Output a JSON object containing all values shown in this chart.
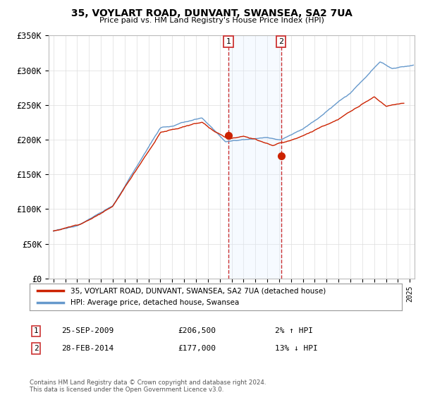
{
  "title": "35, VOYLART ROAD, DUNVANT, SWANSEA, SA2 7UA",
  "subtitle": "Price paid vs. HM Land Registry's House Price Index (HPI)",
  "ylim": [
    0,
    350000
  ],
  "yticks": [
    0,
    50000,
    100000,
    150000,
    200000,
    250000,
    300000,
    350000
  ],
  "ytick_labels": [
    "£0",
    "£50K",
    "£100K",
    "£150K",
    "£200K",
    "£250K",
    "£300K",
    "£350K"
  ],
  "xlim_start": 1994.6,
  "xlim_end": 2025.4,
  "hpi_color": "#6699cc",
  "price_color": "#cc2200",
  "transaction1_x": 2009.73,
  "transaction1_y": 206500,
  "transaction2_x": 2014.16,
  "transaction2_y": 177000,
  "vline_color": "#cc3333",
  "span_color": "#ddeeff",
  "legend_label1": "35, VOYLART ROAD, DUNVANT, SWANSEA, SA2 7UA (detached house)",
  "legend_label2": "HPI: Average price, detached house, Swansea",
  "table_row1_num": "1",
  "table_row1_date": "25-SEP-2009",
  "table_row1_price": "£206,500",
  "table_row1_hpi": "2% ↑ HPI",
  "table_row2_num": "2",
  "table_row2_date": "28-FEB-2014",
  "table_row2_price": "£177,000",
  "table_row2_hpi": "13% ↓ HPI",
  "copyright": "Contains HM Land Registry data © Crown copyright and database right 2024.\nThis data is licensed under the Open Government Licence v3.0.",
  "bg_color": "#ffffff",
  "grid_color": "#dddddd"
}
